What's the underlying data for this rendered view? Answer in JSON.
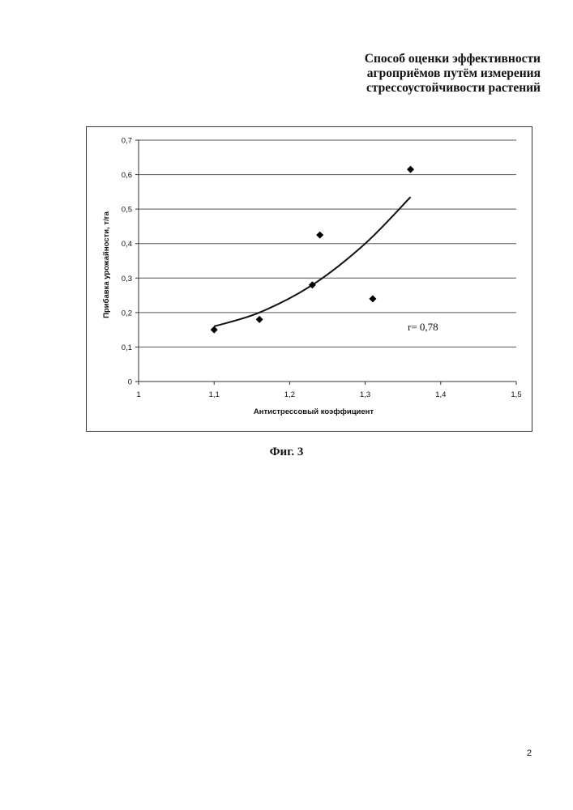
{
  "header": {
    "lines": [
      "Способ оценки эффективности",
      "агроприёмов путём измерения",
      "стрессоустойчивости растений"
    ]
  },
  "caption": "Фиг. 3",
  "page_number": "2",
  "chart_data": {
    "type": "scatter",
    "title": "",
    "xlabel": "Антистрессовый коэффициент",
    "ylabel": "Прибавка урожайности, т/га",
    "xlim": [
      1,
      1.5
    ],
    "ylim": [
      0,
      0.7
    ],
    "x_ticks": [
      "1",
      "1,1",
      "1,2",
      "1,3",
      "1,4",
      "1,5"
    ],
    "y_ticks": [
      "0",
      "0,1",
      "0,2",
      "0,3",
      "0,4",
      "0,5",
      "0,6",
      "0,7"
    ],
    "grid": "horizontal",
    "legend": "none",
    "series": [
      {
        "x": [
          1.1,
          1.16,
          1.23,
          1.24,
          1.31,
          1.36
        ],
        "y": [
          0.15,
          0.18,
          0.28,
          0.425,
          0.24,
          0.615
        ],
        "marker": "diamond",
        "color": "#000000"
      }
    ],
    "trendline": {
      "kind": "polynomial",
      "x": [
        1.1,
        1.16,
        1.23,
        1.3,
        1.36
      ],
      "y": [
        0.16,
        0.2,
        0.28,
        0.4,
        0.535
      ]
    },
    "annotation": "r= 0,78"
  }
}
